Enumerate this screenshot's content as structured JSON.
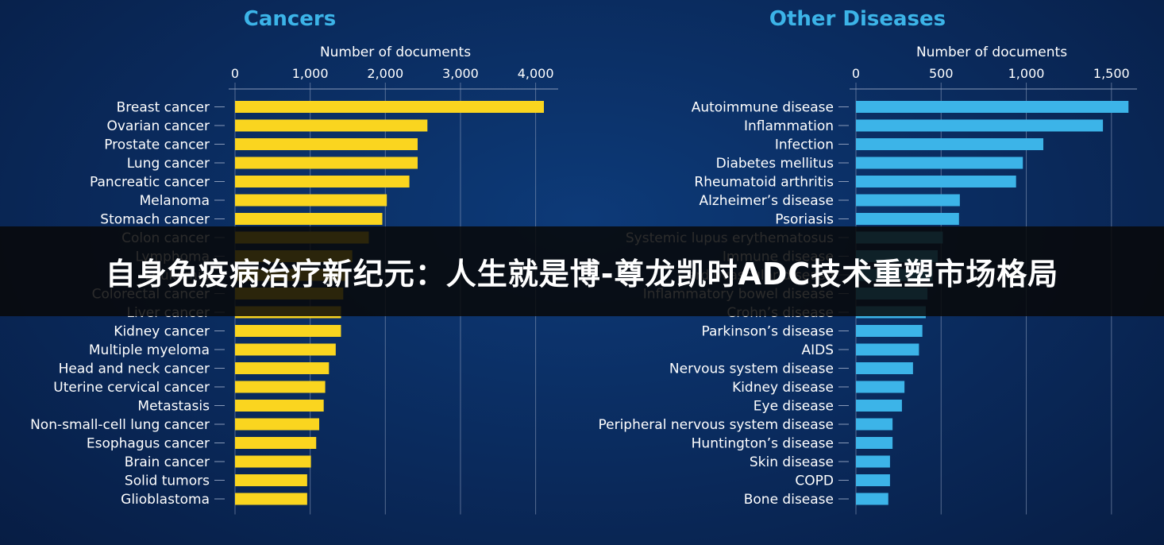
{
  "colors": {
    "cancer_bar": "#fad51f",
    "other_bar": "#3cb4e8",
    "title_text": "#3cb4e8",
    "text": "#ffffff",
    "axis_line": "#8899b8",
    "banner_bg": "rgba(8,8,8,0.86)"
  },
  "banner": {
    "text": "自身免疫病治疗新纪元：人生就是博-尊龙凯时ADC技术重塑市场格局"
  },
  "chart_data": [
    {
      "type": "bar",
      "orientation": "horizontal",
      "title": "Cancers",
      "xlabel": "Number of documents",
      "xlim": [
        0,
        4300
      ],
      "xticks": [
        0,
        1000,
        2000,
        3000,
        4000
      ],
      "xtick_labels": [
        "0",
        "1,000",
        "2,000",
        "3,000",
        "4,000"
      ],
      "grid": true,
      "categories": [
        "Breast cancer",
        "Ovarian cancer",
        "Prostate cancer",
        "Lung cancer",
        "Pancreatic cancer",
        "Melanoma",
        "Stomach cancer",
        "Colon cancer",
        "Lymphoma",
        "Leukemia",
        "Colorectal cancer",
        "Liver cancer",
        "Kidney cancer",
        "Multiple myeloma",
        "Head and neck cancer",
        "Uterine cervical cancer",
        "Metastasis",
        "Non-small-cell lung cancer",
        "Esophagus cancer",
        "Brain cancer",
        "Solid tumors",
        "Glioblastoma"
      ],
      "values": [
        4110,
        2560,
        2430,
        2430,
        2320,
        2020,
        1960,
        1780,
        1560,
        1490,
        1440,
        1410,
        1410,
        1340,
        1250,
        1200,
        1180,
        1120,
        1080,
        1010,
        960,
        960
      ]
    },
    {
      "type": "bar",
      "orientation": "horizontal",
      "title": "Other Diseases",
      "xlabel": "Number of documents",
      "xlim": [
        0,
        1650
      ],
      "xticks": [
        0,
        500,
        1000,
        1500
      ],
      "xtick_labels": [
        "0",
        "500",
        "1,000",
        "1,500"
      ],
      "grid": true,
      "categories": [
        "Autoimmune disease",
        "Inflammation",
        "Infection",
        "Diabetes mellitus",
        "Rheumatoid arthritis",
        "Alzheimer’s disease",
        "Psoriasis",
        "Systemic lupus erythematosus",
        "Immune disease",
        "Cardiovascular disease",
        "Inflammatory bowel disease",
        "Crohn’s disease",
        "Parkinson’s disease",
        "AIDS",
        "Nervous system disease",
        "Kidney disease",
        "Eye disease",
        "Peripheral nervous system disease",
        "Huntington’s disease",
        "Skin disease",
        "COPD",
        "Bone disease"
      ],
      "values": [
        1600,
        1450,
        1100,
        980,
        940,
        610,
        605,
        510,
        480,
        450,
        420,
        410,
        390,
        370,
        335,
        285,
        270,
        215,
        215,
        200,
        200,
        190
      ]
    }
  ]
}
